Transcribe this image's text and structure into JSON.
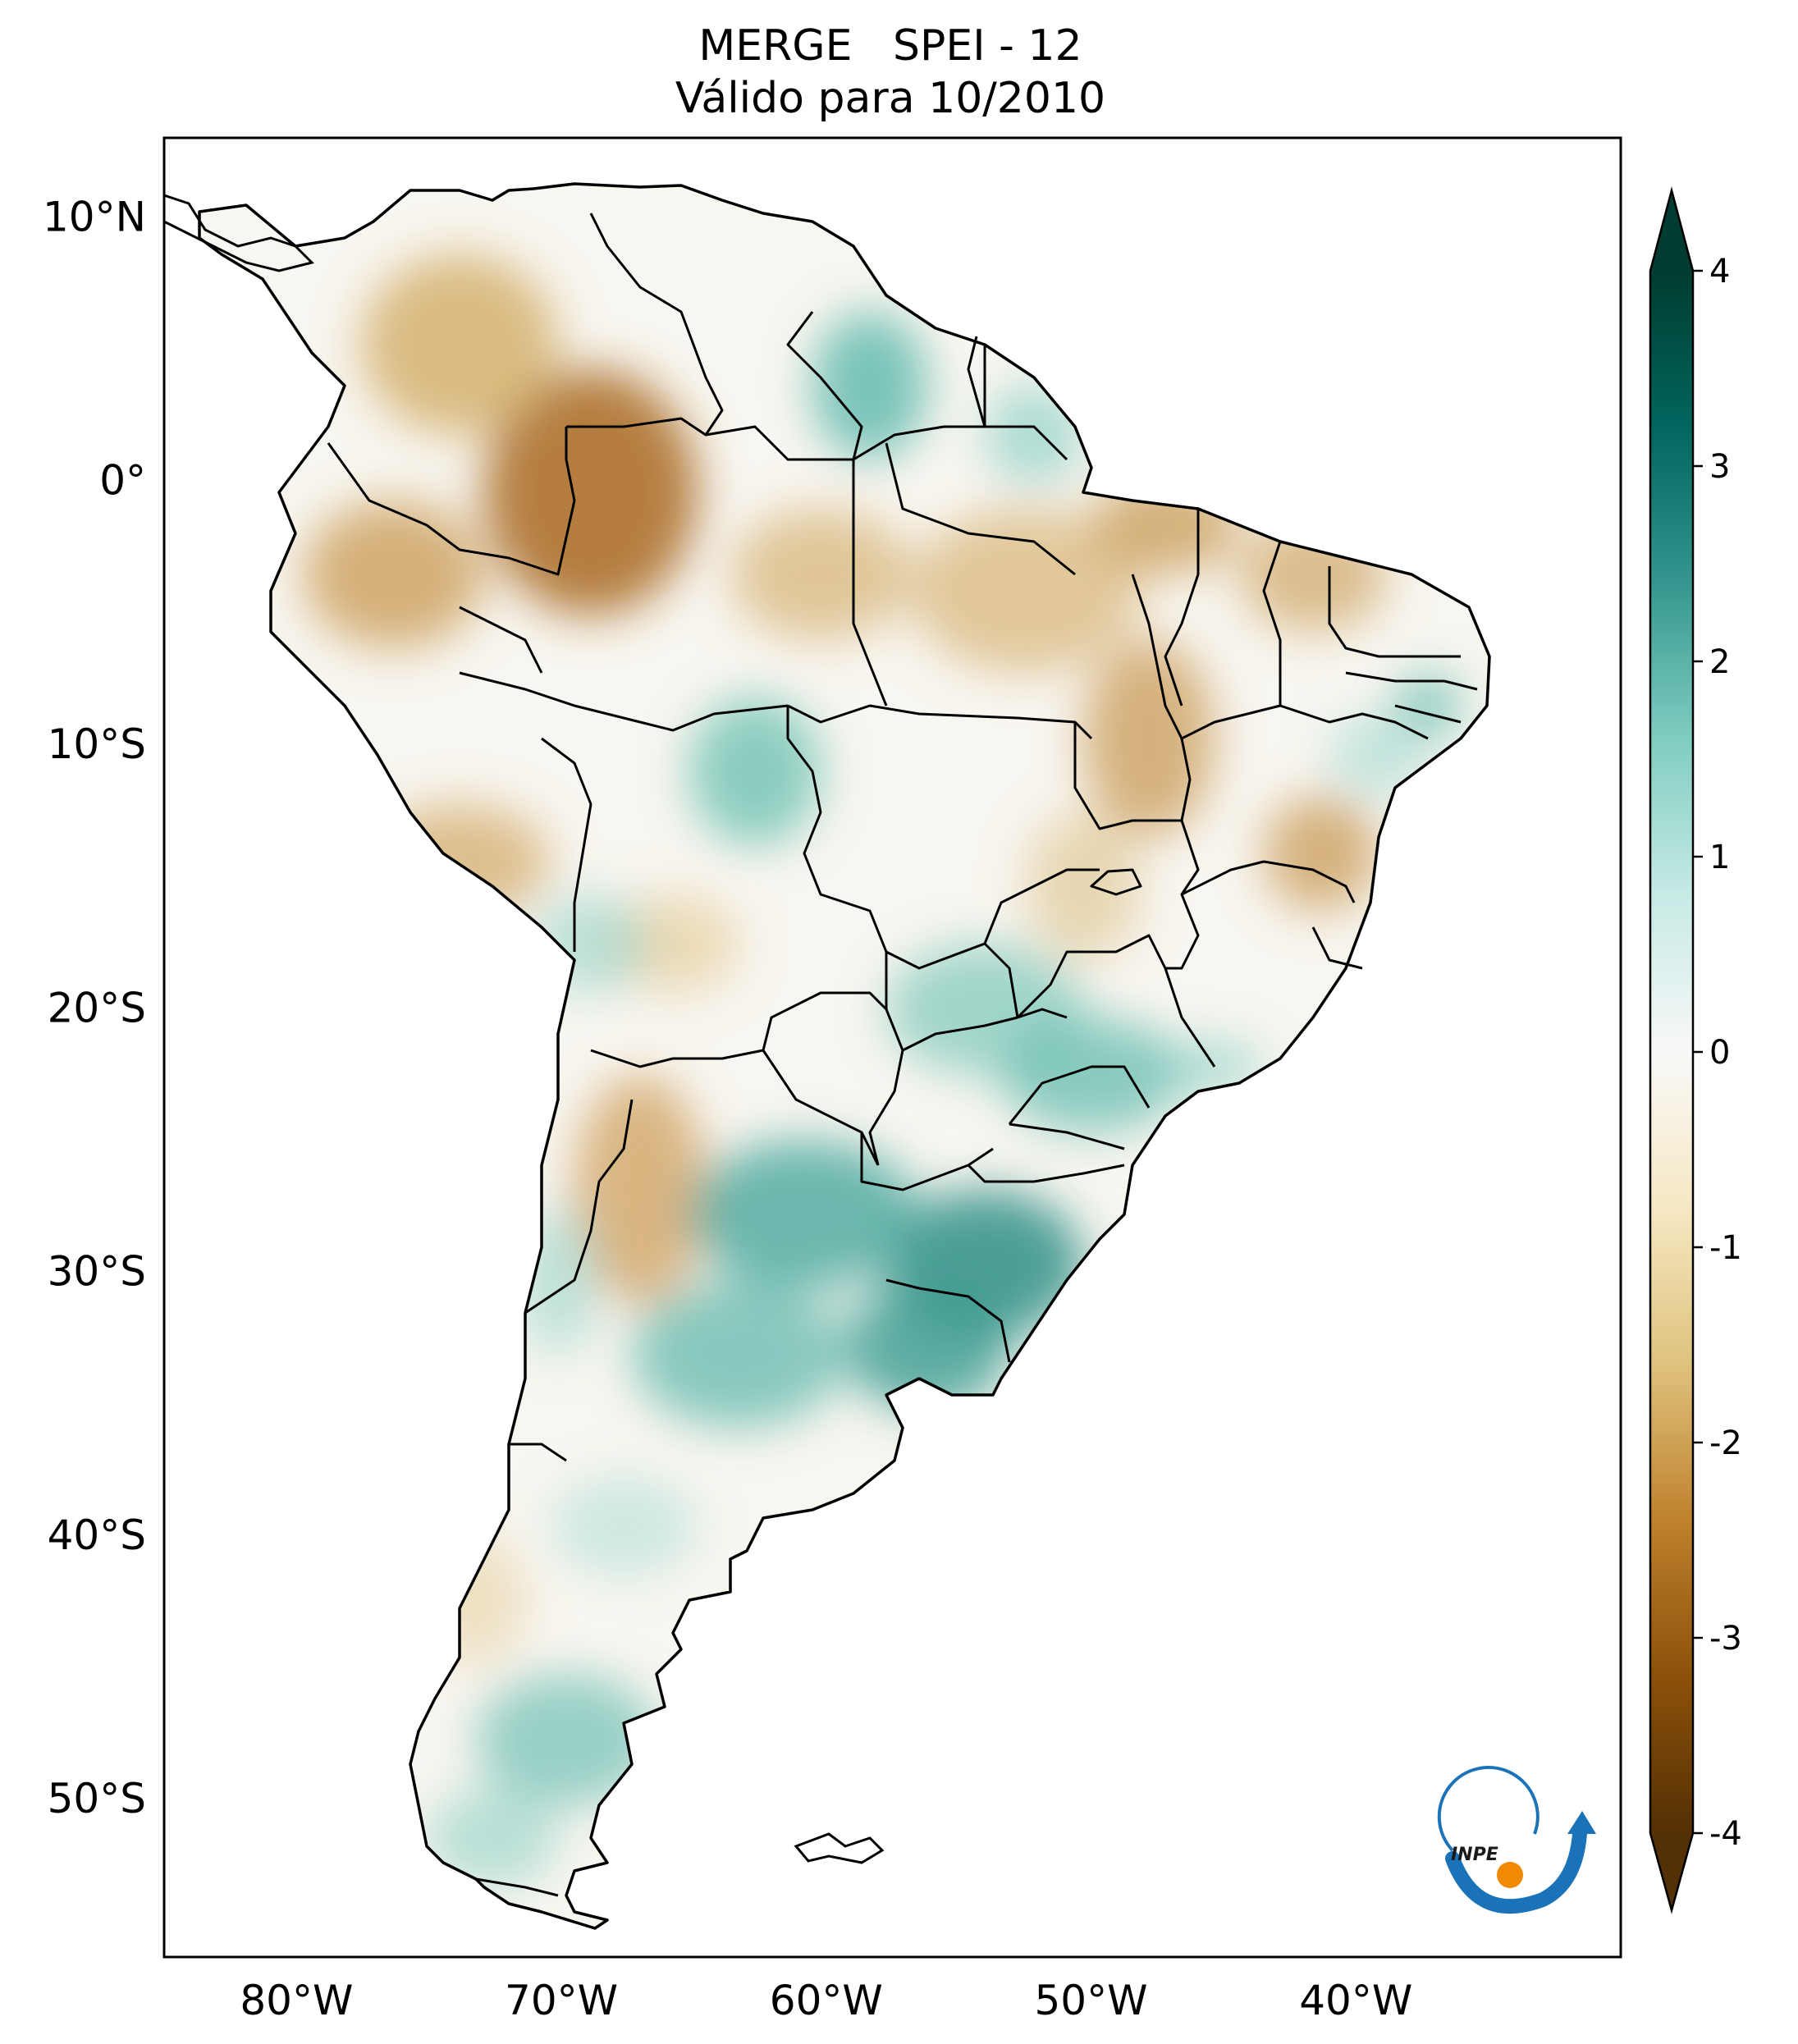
{
  "title": {
    "line1": "MERGE   SPEI - 12",
    "line2": "Válido para 10/2010"
  },
  "map": {
    "lon_range": [
      -85,
      -30
    ],
    "lat_range": [
      -56,
      13
    ],
    "lat_ticks": [
      {
        "value": 10,
        "label": "10°N"
      },
      {
        "value": 0,
        "label": "0°"
      },
      {
        "value": -10,
        "label": "10°S"
      },
      {
        "value": -20,
        "label": "20°S"
      },
      {
        "value": -30,
        "label": "30°S"
      },
      {
        "value": -40,
        "label": "40°S"
      },
      {
        "value": -50,
        "label": "50°S"
      }
    ],
    "lon_ticks": [
      {
        "value": -80,
        "label": "80°W"
      },
      {
        "value": -70,
        "label": "70°W"
      },
      {
        "value": -60,
        "label": "60°W"
      },
      {
        "value": -50,
        "label": "50°W"
      },
      {
        "value": -40,
        "label": "40°W"
      }
    ],
    "variable": "SPEI-12",
    "notable_regions": [
      {
        "name": "Amazon (western)",
        "tendency": "dry"
      },
      {
        "name": "Northern Brazil",
        "tendency": "dry"
      },
      {
        "name": "Southern Brazil / Uruguay",
        "tendency": "wet"
      },
      {
        "name": "Central Argentina",
        "tendency": "wet"
      }
    ]
  },
  "colorbar": {
    "range": [
      -4,
      4
    ],
    "ticks": [
      "4",
      "3",
      "2",
      "1",
      "0",
      "-1",
      "-2",
      "-3",
      "-4"
    ],
    "extend": "both",
    "colormap": "BrBG",
    "colors": [
      "#543005",
      "#8c510a",
      "#bf812d",
      "#dfc27d",
      "#f6e8c3",
      "#f5f5f5",
      "#c7eae5",
      "#80cdc1",
      "#35978f",
      "#01665e",
      "#003c30"
    ]
  },
  "logo": {
    "text": "INPE",
    "colors": {
      "arc": "#1a73b8",
      "dot": "#f08a00"
    }
  }
}
